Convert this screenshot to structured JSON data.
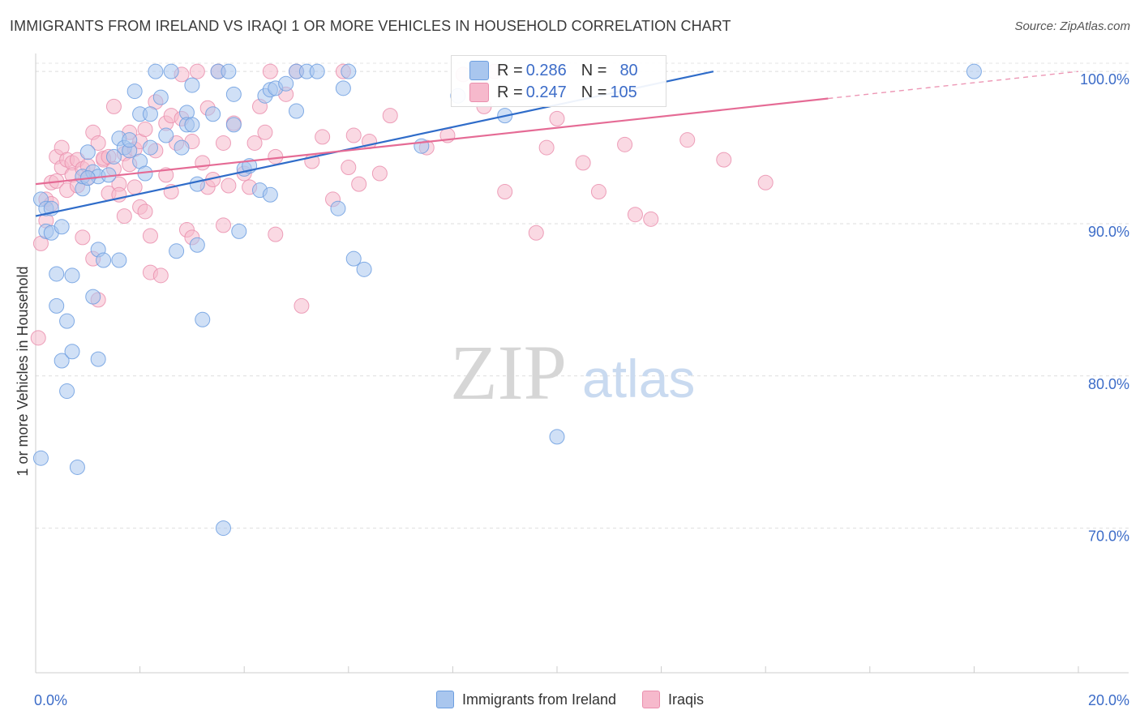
{
  "title": "IMMIGRANTS FROM IRELAND VS IRAQI 1 OR MORE VEHICLES IN HOUSEHOLD CORRELATION CHART",
  "source": "Source: ZipAtlas.com",
  "watermark": {
    "zip": "ZIP",
    "atlas": "atlas"
  },
  "legend": {
    "rows": [
      {
        "r_label": "R = ",
        "r_value": "0.286",
        "n_label": "N = ",
        "n_value": "80",
        "color": "#6ea0e6"
      },
      {
        "r_label": "R = ",
        "r_value": "0.247",
        "n_label": "N = ",
        "n_value": "105",
        "color": "#f095b3"
      }
    ]
  },
  "bottom_legend": [
    "Immigrants from Ireland",
    "Iraqis"
  ],
  "colors": {
    "blue_fill": "#a9c6ee",
    "blue_stroke": "#6c9ee0",
    "blue_line": "#2f6cc9",
    "pink_fill": "#f6b9cc",
    "pink_stroke": "#ea8fae",
    "pink_line": "#e56b95",
    "axis_text": "#3c6cc8"
  },
  "chart_data": {
    "type": "scatter",
    "title": "IMMIGRANTS FROM IRELAND VS IRAQI 1 OR MORE VEHICLES IN HOUSEHOLD CORRELATION CHART",
    "xlabel": "",
    "ylabel": "1 or more Vehicles in Household",
    "xlim": [
      0,
      20
    ],
    "ylim": [
      60.5,
      101.5
    ],
    "x_tick_labels": [
      "0.0%",
      "20.0%"
    ],
    "y_ticks": [
      70,
      80,
      90,
      100
    ],
    "y_tick_labels": [
      "70.0%",
      "80.0%",
      "90.0%",
      "100.0%"
    ],
    "grid": true,
    "series": [
      {
        "name": "Immigrants from Ireland",
        "color": "#6ea0e6",
        "trend": {
          "x": [
            0,
            13
          ],
          "y": [
            90.5,
            100.0
          ],
          "solid_to": 13
        },
        "points": [
          [
            0.1,
            91.6
          ],
          [
            0.2,
            91.0
          ],
          [
            0.2,
            89.5
          ],
          [
            0.3,
            89.4
          ],
          [
            0.4,
            86.7
          ],
          [
            0.4,
            84.6
          ],
          [
            0.5,
            89.8
          ],
          [
            0.5,
            81.0
          ],
          [
            0.6,
            83.6
          ],
          [
            0.6,
            79.0
          ],
          [
            0.7,
            81.6
          ],
          [
            0.7,
            86.6
          ],
          [
            0.8,
            74.0
          ],
          [
            0.9,
            92.3
          ],
          [
            0.9,
            93.1
          ],
          [
            1.0,
            94.7
          ],
          [
            1.1,
            93.4
          ],
          [
            1.1,
            85.2
          ],
          [
            1.2,
            93.1
          ],
          [
            1.2,
            88.3
          ],
          [
            1.2,
            81.1
          ],
          [
            1.3,
            87.6
          ],
          [
            1.4,
            93.2
          ],
          [
            1.5,
            94.4
          ],
          [
            1.6,
            95.6
          ],
          [
            1.6,
            87.6
          ],
          [
            1.7,
            95.0
          ],
          [
            1.8,
            94.8
          ],
          [
            1.9,
            98.7
          ],
          [
            2.0,
            94.1
          ],
          [
            2.0,
            97.2
          ],
          [
            2.1,
            93.3
          ],
          [
            2.2,
            97.2
          ],
          [
            2.3,
            100.0
          ],
          [
            2.4,
            98.3
          ],
          [
            2.5,
            95.8
          ],
          [
            2.6,
            100.0
          ],
          [
            2.7,
            88.2
          ],
          [
            2.8,
            95.0
          ],
          [
            2.9,
            97.3
          ],
          [
            2.9,
            96.5
          ],
          [
            3.0,
            99.1
          ],
          [
            3.1,
            92.6
          ],
          [
            3.1,
            88.6
          ],
          [
            3.2,
            83.7
          ],
          [
            3.4,
            97.2
          ],
          [
            3.5,
            100.0
          ],
          [
            3.6,
            70.0
          ],
          [
            3.7,
            100.0
          ],
          [
            3.8,
            96.5
          ],
          [
            3.8,
            98.5
          ],
          [
            3.9,
            89.5
          ],
          [
            4.0,
            93.6
          ],
          [
            4.1,
            93.8
          ],
          [
            4.3,
            92.2
          ],
          [
            4.4,
            98.4
          ],
          [
            4.5,
            98.8
          ],
          [
            4.5,
            91.9
          ],
          [
            4.6,
            98.9
          ],
          [
            4.8,
            99.2
          ],
          [
            5.0,
            97.4
          ],
          [
            5.0,
            100.0
          ],
          [
            5.2,
            100.0
          ],
          [
            5.4,
            100.0
          ],
          [
            5.8,
            91.0
          ],
          [
            5.9,
            98.9
          ],
          [
            6.0,
            100.0
          ],
          [
            6.1,
            87.7
          ],
          [
            6.3,
            87.0
          ],
          [
            7.4,
            95.1
          ],
          [
            8.1,
            98.4
          ],
          [
            9.0,
            97.1
          ],
          [
            10.0,
            76.0
          ],
          [
            18.0,
            100.0
          ],
          [
            0.1,
            74.6
          ],
          [
            1.8,
            95.5
          ],
          [
            1.0,
            93.0
          ],
          [
            2.2,
            95.0
          ],
          [
            3.0,
            96.5
          ],
          [
            0.3,
            91.0
          ]
        ]
      },
      {
        "name": "Iraqis",
        "color": "#f095b3",
        "trend": {
          "x": [
            0,
            20
          ],
          "y": [
            92.6,
            100.0
          ],
          "solid_to": 15.2
        },
        "points": [
          [
            0.05,
            82.5
          ],
          [
            0.1,
            88.7
          ],
          [
            0.2,
            91.6
          ],
          [
            0.2,
            90.2
          ],
          [
            0.3,
            91.3
          ],
          [
            0.3,
            92.7
          ],
          [
            0.4,
            92.8
          ],
          [
            0.4,
            94.4
          ],
          [
            0.5,
            95.0
          ],
          [
            0.5,
            93.7
          ],
          [
            0.6,
            92.2
          ],
          [
            0.6,
            94.2
          ],
          [
            0.7,
            94.0
          ],
          [
            0.7,
            93.2
          ],
          [
            0.8,
            94.2
          ],
          [
            0.8,
            92.5
          ],
          [
            0.9,
            93.6
          ],
          [
            0.9,
            89.1
          ],
          [
            1.0,
            93.8
          ],
          [
            1.0,
            93.0
          ],
          [
            1.1,
            96.0
          ],
          [
            1.1,
            87.7
          ],
          [
            1.2,
            95.3
          ],
          [
            1.2,
            85.0
          ],
          [
            1.3,
            94.2
          ],
          [
            1.3,
            94.3
          ],
          [
            1.4,
            94.4
          ],
          [
            1.4,
            92.0
          ],
          [
            1.5,
            97.7
          ],
          [
            1.5,
            93.6
          ],
          [
            1.6,
            92.6
          ],
          [
            1.6,
            91.9
          ],
          [
            1.7,
            94.6
          ],
          [
            1.7,
            90.5
          ],
          [
            1.8,
            96.0
          ],
          [
            1.8,
            93.9
          ],
          [
            1.9,
            94.9
          ],
          [
            1.9,
            92.4
          ],
          [
            2.0,
            95.4
          ],
          [
            2.0,
            91.1
          ],
          [
            2.1,
            96.2
          ],
          [
            2.1,
            90.8
          ],
          [
            2.2,
            89.2
          ],
          [
            2.2,
            86.8
          ],
          [
            2.3,
            98.0
          ],
          [
            2.3,
            94.8
          ],
          [
            2.4,
            86.6
          ],
          [
            2.5,
            96.6
          ],
          [
            2.5,
            93.2
          ],
          [
            2.6,
            97.1
          ],
          [
            2.6,
            92.1
          ],
          [
            2.7,
            95.3
          ],
          [
            2.8,
            99.8
          ],
          [
            2.8,
            96.9
          ],
          [
            2.9,
            89.6
          ],
          [
            3.0,
            95.4
          ],
          [
            3.0,
            89.1
          ],
          [
            3.1,
            100.0
          ],
          [
            3.2,
            94.0
          ],
          [
            3.3,
            97.6
          ],
          [
            3.3,
            92.4
          ],
          [
            3.4,
            92.9
          ],
          [
            3.5,
            100.0
          ],
          [
            3.6,
            95.3
          ],
          [
            3.6,
            89.9
          ],
          [
            3.7,
            92.5
          ],
          [
            3.8,
            96.6
          ],
          [
            4.0,
            93.3
          ],
          [
            4.1,
            92.4
          ],
          [
            4.2,
            95.3
          ],
          [
            4.3,
            97.7
          ],
          [
            4.4,
            96.0
          ],
          [
            4.5,
            100.0
          ],
          [
            4.6,
            94.4
          ],
          [
            4.6,
            89.3
          ],
          [
            4.8,
            98.5
          ],
          [
            5.0,
            100.0
          ],
          [
            5.1,
            84.6
          ],
          [
            5.3,
            94.1
          ],
          [
            5.5,
            95.7
          ],
          [
            5.7,
            91.6
          ],
          [
            5.9,
            100.0
          ],
          [
            6.0,
            93.7
          ],
          [
            6.1,
            95.8
          ],
          [
            6.2,
            92.6
          ],
          [
            6.4,
            95.4
          ],
          [
            6.6,
            93.3
          ],
          [
            6.8,
            97.1
          ],
          [
            7.5,
            95.0
          ],
          [
            7.9,
            95.8
          ],
          [
            8.2,
            99.8
          ],
          [
            8.6,
            97.7
          ],
          [
            8.8,
            100.0
          ],
          [
            9.0,
            92.1
          ],
          [
            9.6,
            89.4
          ],
          [
            9.8,
            95.0
          ],
          [
            10.0,
            96.9
          ],
          [
            10.5,
            94.0
          ],
          [
            10.8,
            92.1
          ],
          [
            11.3,
            95.2
          ],
          [
            11.5,
            90.6
          ],
          [
            11.8,
            90.3
          ],
          [
            12.5,
            95.5
          ],
          [
            13.2,
            94.2
          ],
          [
            14.0,
            92.7
          ]
        ]
      }
    ]
  }
}
